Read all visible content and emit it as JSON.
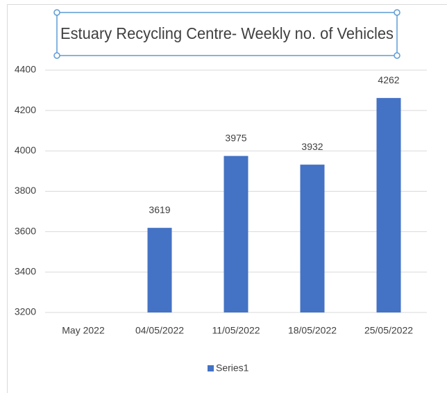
{
  "chart_data": {
    "type": "bar",
    "title": "Estuary Recycling Centre- Weekly no. of Vehicles",
    "categories": [
      "May 2022",
      "04/05/2022",
      "11/05/2022",
      "18/05/2022",
      "25/05/2022"
    ],
    "series": [
      {
        "name": "Series1",
        "color": "#4472c4",
        "values": [
          null,
          3619,
          3975,
          3932,
          4262
        ]
      }
    ],
    "ylim": [
      3200,
      4400
    ],
    "yticks": [
      3200,
      3400,
      3600,
      3800,
      4000,
      4200,
      4400
    ],
    "grid": true,
    "data_labels": true,
    "legend": "bottom"
  }
}
